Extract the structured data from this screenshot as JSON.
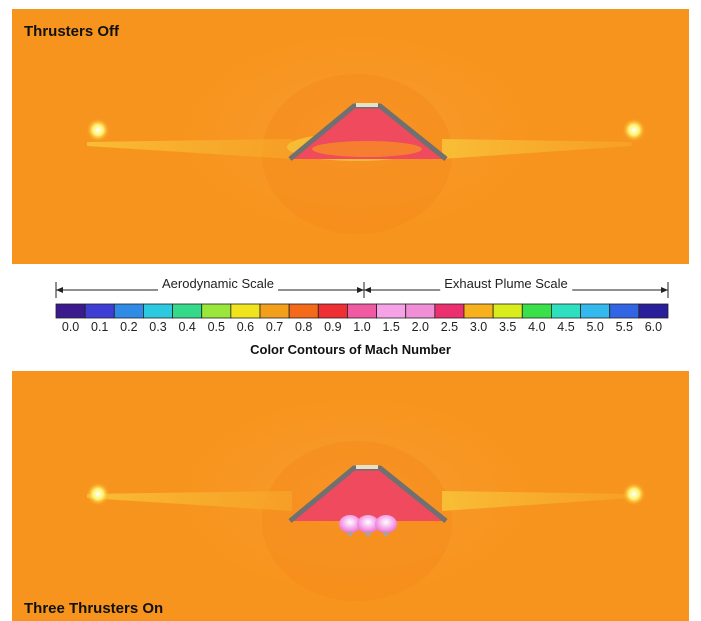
{
  "panels": {
    "top_title": "Thrusters Off",
    "bottom_title": "Three Thrusters On"
  },
  "legend": {
    "aerodynamic_label": "Aerodynamic Scale",
    "plume_label": "Exhaust Plume Scale",
    "title": "Color Contours of Mach Number",
    "ticks": [
      "0.0",
      "0.1",
      "0.2",
      "0.3",
      "0.4",
      "0.5",
      "0.6",
      "0.7",
      "0.8",
      "0.9",
      "1.0",
      "1.5",
      "2.0",
      "2.5",
      "3.0",
      "3.5",
      "4.0",
      "4.5",
      "5.0",
      "5.5",
      "6.0"
    ],
    "colors": [
      "#3a1a8c",
      "#3d3fd4",
      "#2f8be6",
      "#2cc9e0",
      "#35d98a",
      "#9be63a",
      "#f0e41e",
      "#f2a01c",
      "#f36a1a",
      "#ee2f33",
      "#ef5aa2",
      "#f5a3e6",
      "#f08ed6",
      "#ec2f6e",
      "#f7b11c",
      "#d9ec1c",
      "#39e04a",
      "#2fe0c0",
      "#33b9ee",
      "#3165e4",
      "#2a1f9a"
    ]
  },
  "colors": {
    "background_flow": "#f7941d",
    "wake": "#f8c238",
    "body_fill": "#f04a5e",
    "body_edge": "#707070",
    "thruster_plume": "#f08be0"
  }
}
